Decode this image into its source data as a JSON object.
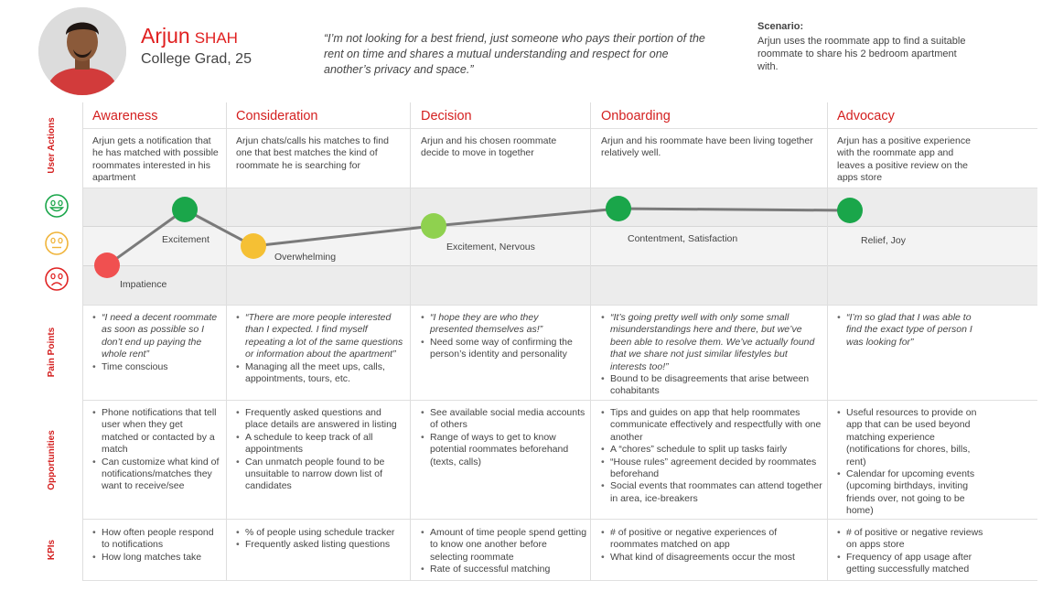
{
  "persona": {
    "first_name": "Arjun",
    "last_name": "SHAH",
    "subtitle": "College Grad, 25",
    "quote": "“I’m not looking for a best friend, just someone who pays their portion of the rent on time and shares a mutual understanding and respect for one another’s privacy and space.”"
  },
  "scenario": {
    "title": "Scenario:",
    "text": "Arjun uses the roommate app to find a suitable roommate to share his 2 bedroom apartment with."
  },
  "row_labels": {
    "user_actions": "User Actions",
    "pain_points": "Pain Points",
    "opportunities": "Opportunities",
    "kpis": "KPIs"
  },
  "stages": [
    {
      "name": "Awareness",
      "action": "Arjun gets a notification that he has matched with possible roommates interested in his apartment",
      "emotions": [
        {
          "label": "Impatience",
          "level": "sad",
          "color": "#f05050"
        },
        {
          "label": "Excitement",
          "level": "happy",
          "color": "#1aa64a"
        }
      ],
      "pain_points": [
        {
          "text": "“I need a decent roommate as soon as possible so I don’t end up paying the whole rent”",
          "quote": true
        },
        {
          "text": "Time conscious",
          "quote": false
        }
      ],
      "opportunities": [
        "Phone notifications that tell user when they get matched or contacted by a match",
        "Can customize what kind of notifications/matches they want to receive/see"
      ],
      "kpis": [
        "How often people respond to notifications",
        "How long matches take"
      ]
    },
    {
      "name": "Consideration",
      "action": "Arjun chats/calls his matches to find one that best matches the kind of roommate he is searching for",
      "emotions": [
        {
          "label": "Overwhelming",
          "level": "neutral-low",
          "color": "#f5c034"
        }
      ],
      "pain_points": [
        {
          "text": "“There are more people interested than I expected. I find myself repeating a lot of the same questions or information about the apartment”",
          "quote": true
        },
        {
          "text": "Managing all the meet ups, calls, appointments, tours, etc.",
          "quote": false
        }
      ],
      "opportunities": [
        "Frequently asked questions and place details are answered in listing",
        "A schedule to keep track of all appointments",
        "Can unmatch people found to be unsuitable to narrow down list of candidates"
      ],
      "kpis": [
        "% of people using schedule tracker",
        "Frequently asked listing questions"
      ]
    },
    {
      "name": "Decision",
      "action": "Arjun and his chosen roommate decide to move in together",
      "emotions": [
        {
          "label": "Excitement, Nervous",
          "level": "neutral-high",
          "color": "#8fd14f"
        }
      ],
      "pain_points": [
        {
          "text": "“I hope they are who they presented themselves as!”",
          "quote": true
        },
        {
          "text": "Need some way of confirming the person’s identity and personality",
          "quote": false
        }
      ],
      "opportunities": [
        "See available social media accounts of others",
        "Range of ways to get to know potential roommates beforehand (texts, calls)"
      ],
      "kpis": [
        "Amount of time people spend getting to know one another before selecting roommate",
        "Rate of successful matching"
      ]
    },
    {
      "name": "Onboarding",
      "action": "Arjun and his roommate have been living together relatively well.",
      "emotions": [
        {
          "label": "Contentment, Satisfaction",
          "level": "happy",
          "color": "#1aa64a"
        }
      ],
      "pain_points": [
        {
          "text": "“It’s going pretty well with only some small misunderstandings here and there, but we’ve been able to resolve them. We’ve actually found that we share not just similar lifestyles but interests too!”",
          "quote": true
        },
        {
          "text": "Bound to be disagreements that arise between cohabitants",
          "quote": false
        }
      ],
      "opportunities": [
        "Tips and guides on app that help roommates communicate effectively and respectfully with one another",
        "A “chores” schedule to split up tasks fairly",
        "“House rules” agreement decided by roommates beforehand",
        "Social events that roommates can attend together in area, ice-breakers"
      ],
      "kpis": [
        "# of positive or negative experiences of roommates matched on app",
        "What kind of disagreements occur the most"
      ]
    },
    {
      "name": "Advocacy",
      "action": "Arjun has a positive experience with the roommate app and leaves a positive review on the apps store",
      "emotions": [
        {
          "label": "Relief, Joy",
          "level": "happy",
          "color": "#1aa64a"
        }
      ],
      "pain_points": [
        {
          "text": "“I’m so glad that I was able to find the exact type of person I was looking for”",
          "quote": true
        }
      ],
      "opportunities": [
        "Useful resources to provide on app that can be used beyond matching experience (notifications for chores, bills, rent)",
        "Calendar for upcoming events (upcoming birthdays, inviting friends over, not going to be home)"
      ],
      "kpis": [
        "# of positive or negative reviews on apps store",
        "Frequency of app usage after getting successfully matched"
      ]
    }
  ],
  "emotion_icons": [
    "smiley-happy-icon",
    "smiley-neutral-icon",
    "smiley-sad-icon"
  ],
  "colors": {
    "accent": "#d42020",
    "happy": "#1aa64a",
    "neutral": "#f5c034",
    "sad": "#f05050",
    "line": "#7a7a7a"
  }
}
